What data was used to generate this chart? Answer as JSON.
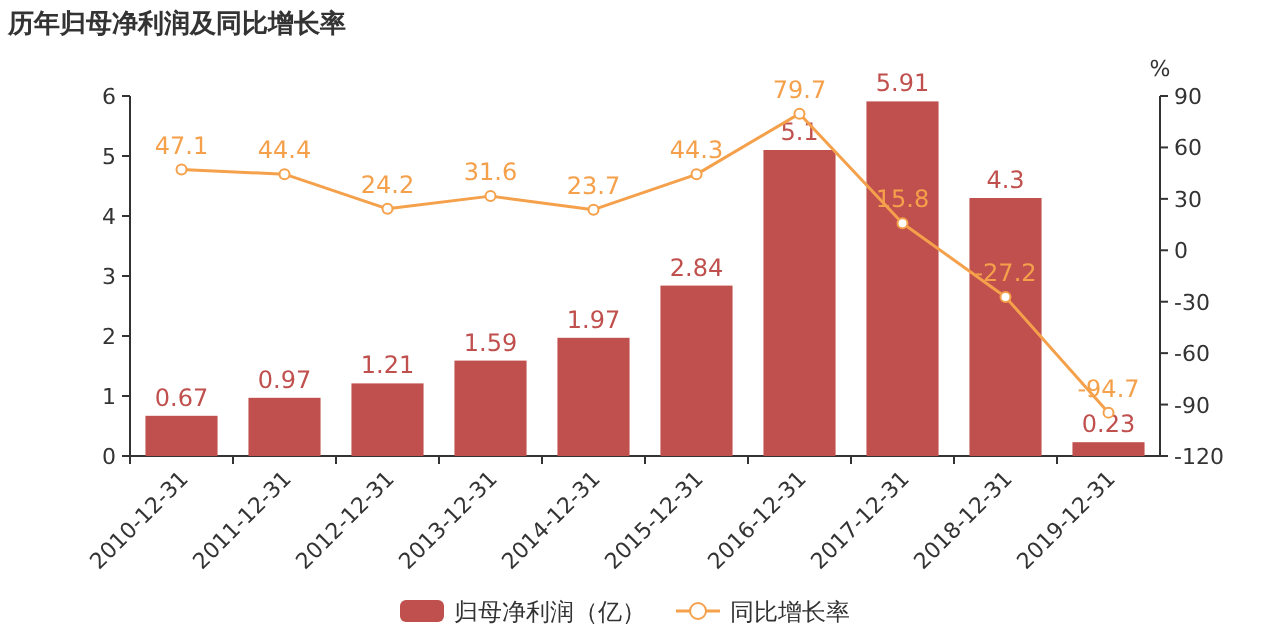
{
  "chart_data": {
    "type": "bar",
    "title": "历年归母净利润及同比增长率",
    "y2label": "%",
    "categories": [
      "2010-12-31",
      "2011-12-31",
      "2012-12-31",
      "2013-12-31",
      "2014-12-31",
      "2015-12-31",
      "2016-12-31",
      "2017-12-31",
      "2018-12-31",
      "2019-12-31"
    ],
    "series": [
      {
        "name": "归母净利润（亿）",
        "color": "#c0504d",
        "values": [
          0.67,
          0.97,
          1.21,
          1.59,
          1.97,
          2.84,
          5.1,
          5.91,
          4.3,
          0.23
        ]
      },
      {
        "name": "同比增长率",
        "type": "line",
        "axis": "y2",
        "marker": "circle",
        "color": "#f5a04b",
        "values": [
          47.1,
          44.4,
          24.2,
          31.6,
          23.7,
          44.3,
          79.7,
          15.8,
          -27.2,
          -94.7
        ]
      }
    ],
    "ylim": [
      0,
      6
    ],
    "yticks": [
      0,
      1,
      2,
      3,
      4,
      5,
      6
    ],
    "y2lim": [
      -120,
      90
    ],
    "y2ticks": [
      -120,
      -90,
      -60,
      -30,
      0,
      30,
      60,
      90
    ],
    "data_labels": true,
    "legend": "bottom"
  }
}
